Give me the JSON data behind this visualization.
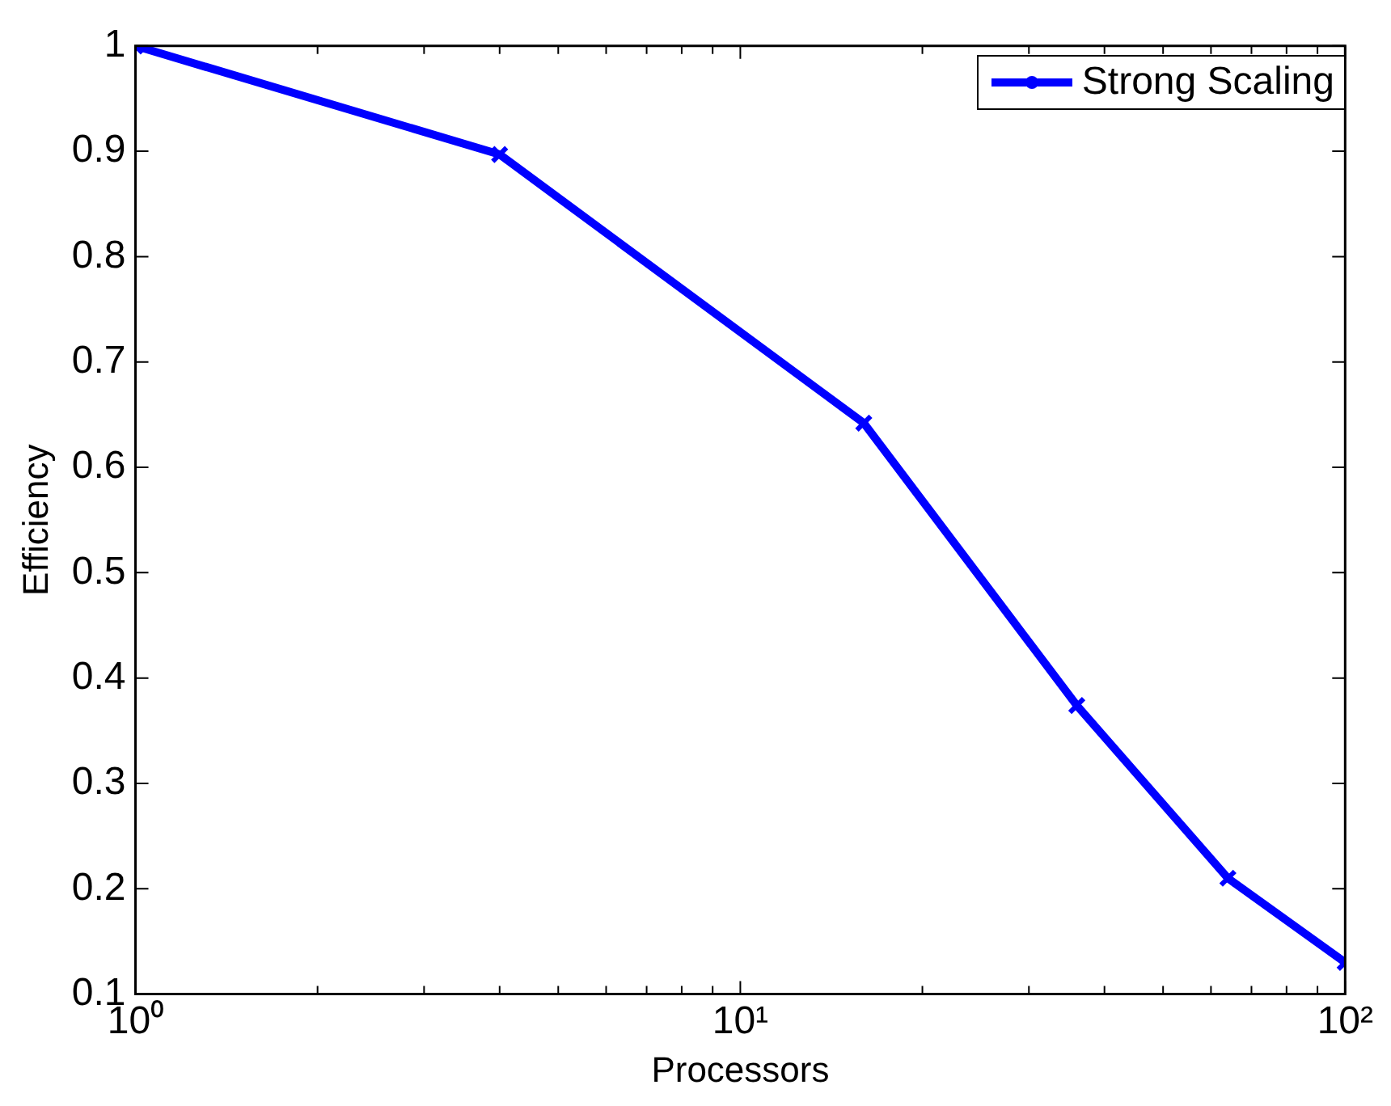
{
  "chart_data": {
    "type": "line",
    "xlabel": "Processors",
    "ylabel": "Efficiency",
    "x": [
      1,
      4,
      16,
      36,
      64,
      100
    ],
    "series": [
      {
        "name": "Strong Scaling",
        "color": "#0000ff",
        "values": [
          1,
          0.897,
          0.642,
          0.374,
          0.21,
          0.13
        ]
      }
    ],
    "log": "x",
    "xlim": [
      1,
      100
    ],
    "xticks": [
      {
        "value": 1,
        "label": "10⁰"
      },
      {
        "value": 2,
        "label": null
      },
      {
        "value": 3,
        "label": null
      },
      {
        "value": 4,
        "label": null
      },
      {
        "value": 5,
        "label": null
      },
      {
        "value": 6,
        "label": null
      },
      {
        "value": 7,
        "label": null
      },
      {
        "value": 8,
        "label": null
      },
      {
        "value": 9,
        "label": null
      },
      {
        "value": 10,
        "label": "10¹"
      },
      {
        "value": 20,
        "label": null
      },
      {
        "value": 30,
        "label": null
      },
      {
        "value": 40,
        "label": null
      },
      {
        "value": 50,
        "label": null
      },
      {
        "value": 60,
        "label": null
      },
      {
        "value": 70,
        "label": null
      },
      {
        "value": 80,
        "label": null
      },
      {
        "value": 90,
        "label": null
      },
      {
        "value": 100,
        "label": "10²"
      }
    ],
    "ylim": [
      0.1,
      1
    ],
    "yticks": [
      0.1,
      0.2,
      0.3,
      0.4,
      0.5,
      0.6,
      0.7,
      0.8,
      0.9,
      1
    ],
    "grid": false,
    "legend": "top right",
    "marker": "cross",
    "line_style": "solid"
  }
}
